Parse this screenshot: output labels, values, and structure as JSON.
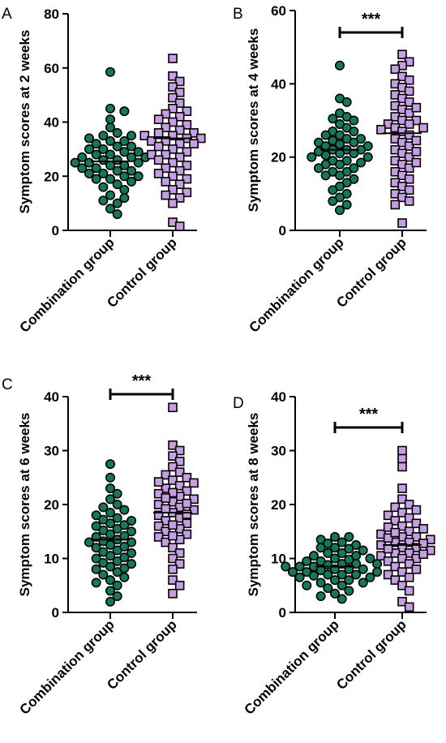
{
  "colors": {
    "combination": "#127a5c",
    "control": "#c79ee6",
    "stroke": "#000000"
  },
  "chart_data": [
    {
      "panel": "A",
      "type": "scatter",
      "ylabel": "Symptom scores at 2 weeks",
      "ylim": [
        0,
        80
      ],
      "yticks": [
        0,
        20,
        40,
        60,
        80
      ],
      "categories": [
        "Combination group",
        "Control group"
      ],
      "significance": null,
      "series": [
        {
          "category": "Combination group",
          "mean": 25.5,
          "values": [
            58.5,
            45,
            44,
            41,
            38,
            36,
            35,
            35,
            34,
            33,
            33,
            32,
            31,
            31,
            30,
            30,
            29,
            29,
            28,
            28,
            27,
            27,
            27,
            26,
            26,
            25,
            25,
            25,
            24,
            24,
            23,
            23,
            22,
            22,
            21,
            21,
            20,
            20,
            19,
            19,
            18,
            17,
            16,
            15,
            13,
            12,
            11,
            10,
            8,
            6
          ]
        },
        {
          "category": "Control group",
          "mean": 34,
          "values": [
            63.5,
            57,
            55,
            53,
            51,
            49,
            47,
            45,
            44,
            43,
            42,
            41,
            40,
            39,
            38,
            37,
            36,
            36,
            35,
            35,
            34,
            34,
            33,
            33,
            32,
            32,
            31,
            30,
            29,
            28,
            28,
            27,
            26,
            25,
            24,
            23,
            22,
            21,
            20,
            19,
            18,
            17,
            15,
            14,
            13,
            12,
            10,
            3,
            1.5
          ]
        }
      ]
    },
    {
      "panel": "B",
      "type": "scatter",
      "ylabel": "Symptom scores at 4 weeks",
      "ylim": [
        0,
        60
      ],
      "yticks": [
        0,
        20,
        40,
        60
      ],
      "categories": [
        "Combination group",
        "Control group"
      ],
      "significance": "***",
      "series": [
        {
          "category": "Combination group",
          "mean": 22,
          "values": [
            45,
            36,
            35,
            32,
            31,
            30,
            29,
            28,
            27,
            27,
            26,
            26,
            25,
            25,
            24,
            24,
            23,
            23,
            22,
            22,
            22,
            21,
            21,
            20,
            20,
            19,
            19,
            18,
            18,
            17,
            17,
            16,
            16,
            15,
            15,
            14,
            13,
            12,
            11,
            10,
            9,
            8,
            7,
            5.5,
            30.5,
            24.5,
            20.5,
            18.5,
            23.5,
            21.5
          ]
        },
        {
          "category": "Control group",
          "mean": 26.5,
          "values": [
            48,
            46,
            45,
            44,
            42,
            41,
            40,
            39,
            38,
            37,
            36,
            35,
            34,
            33,
            32,
            31,
            30,
            30,
            29,
            29,
            28,
            28,
            27,
            26,
            25,
            24,
            23,
            22,
            21,
            20,
            19,
            18,
            17,
            16,
            15,
            14,
            13,
            12,
            11,
            10,
            9,
            8,
            7,
            2,
            33.5,
            27.5,
            24.5,
            21.5,
            18.5
          ]
        }
      ]
    },
    {
      "panel": "C",
      "type": "scatter",
      "ylabel": "Symptom scores at 6 weeks",
      "ylim": [
        0,
        40
      ],
      "yticks": [
        0,
        10,
        20,
        30,
        40
      ],
      "categories": [
        "Combination group",
        "Control group"
      ],
      "significance": "***",
      "series": [
        {
          "category": "Combination group",
          "mean": 13.5,
          "values": [
            27.5,
            25,
            23,
            22,
            21,
            20,
            19.5,
            19,
            18.5,
            18,
            17.5,
            17,
            16.5,
            16,
            15.5,
            15,
            14.5,
            14,
            13.5,
            13,
            13,
            12.5,
            12,
            11.5,
            11,
            10.5,
            10,
            9.5,
            9,
            8.5,
            8,
            7.5,
            7,
            6.5,
            6,
            5.5,
            5,
            4,
            3,
            2,
            15.2,
            12.2,
            16.2,
            10.2,
            14.2,
            11.2,
            9.2,
            17.2,
            8.2,
            13.2
          ]
        },
        {
          "category": "Control group",
          "mean": 18.5,
          "values": [
            38,
            31,
            30,
            29,
            28,
            27,
            26,
            25.5,
            25,
            24.5,
            24,
            23.5,
            23,
            22.5,
            22,
            21.5,
            21,
            20.5,
            20,
            19.5,
            19,
            18.5,
            18,
            17.5,
            17,
            16.5,
            16,
            15.5,
            15,
            14.5,
            14,
            13.5,
            13,
            12,
            11,
            10,
            9,
            8,
            6,
            5,
            3.5,
            20.2,
            18.2,
            22.2,
            16.2,
            24.2,
            14.2,
            19.2,
            21.2
          ]
        }
      ]
    },
    {
      "panel": "D",
      "type": "scatter",
      "ylabel": "Symptom scores at 8 weeks",
      "ylim": [
        0,
        40
      ],
      "yticks": [
        0,
        10,
        20,
        30,
        40
      ],
      "categories": [
        "Combination group",
        "Control group"
      ],
      "significance": "***",
      "series": [
        {
          "category": "Combination group",
          "mean": 8.5,
          "values": [
            14,
            14,
            13.5,
            13,
            12.5,
            12,
            12,
            11.5,
            11,
            11,
            10.5,
            10.5,
            10,
            10,
            9.5,
            9.5,
            9,
            9,
            9,
            8.5,
            8.5,
            8.5,
            8,
            8,
            8,
            7.5,
            7.5,
            7.5,
            7,
            7,
            7,
            6.5,
            6.5,
            6,
            6,
            5.5,
            5.5,
            5,
            5,
            4.5,
            4,
            3.5,
            3,
            2.5,
            12.8,
            11.8,
            9.8,
            8.8,
            7.8,
            6.8
          ]
        },
        {
          "category": "Control group",
          "mean": 12.5,
          "values": [
            30,
            28.5,
            27,
            23,
            21,
            20,
            19.5,
            19,
            18.5,
            18,
            17.5,
            17,
            16.5,
            16,
            15.5,
            15,
            14.5,
            14,
            14,
            13.5,
            13,
            13,
            12.5,
            12,
            12,
            11.5,
            11,
            11,
            10.5,
            10,
            10,
            9.5,
            9,
            8.5,
            8,
            7.5,
            7,
            6.5,
            6,
            5,
            4,
            2,
            1,
            13.8,
            12.8,
            15.8,
            11.8,
            14.8,
            10.8
          ]
        }
      ]
    }
  ]
}
